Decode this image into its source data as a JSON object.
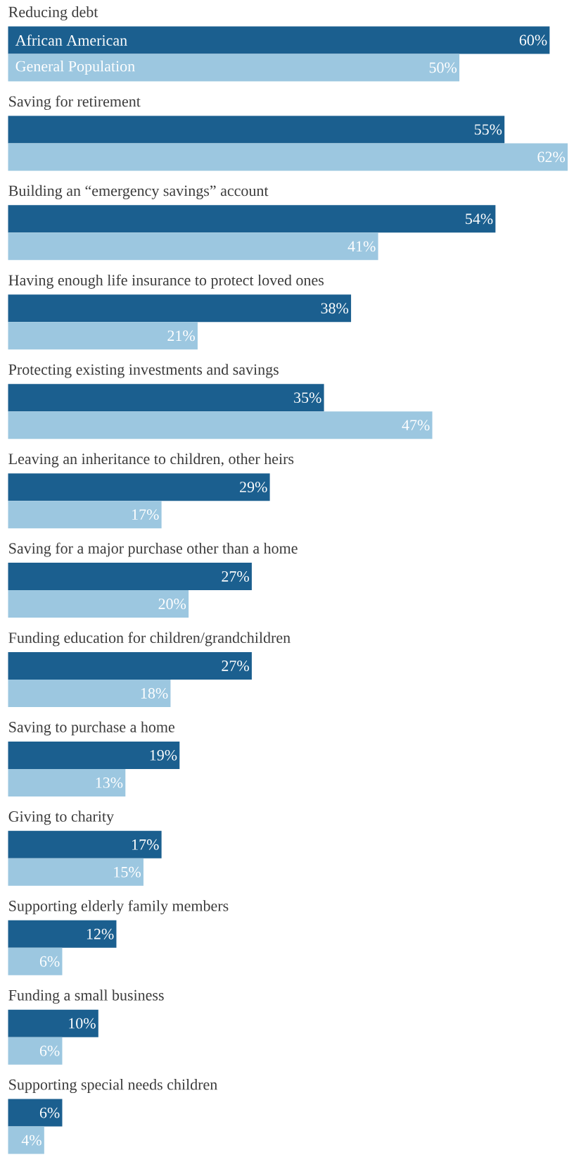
{
  "chart_data": {
    "type": "bar",
    "orientation": "horizontal",
    "categories": [
      "Reducing debt",
      "Saving for retirement",
      "Building an “emergency savings” account",
      "Having enough life insurance to protect loved ones",
      "Protecting existing investments and savings",
      "Leaving an inheritance to children, other heirs",
      "Saving for a major purchase other than a home",
      "Funding education for children/grandchildren",
      "Saving to purchase a home",
      "Giving to charity",
      "Supporting elderly family members",
      "Funding a small business",
      "Supporting special needs children"
    ],
    "series": [
      {
        "name": "African American",
        "color": "#1b5f8f",
        "values": [
          60,
          55,
          54,
          38,
          35,
          29,
          27,
          27,
          19,
          17,
          12,
          10,
          6
        ],
        "value_labels": [
          "60%",
          "55%",
          "54%",
          "38%",
          "35%",
          "29%",
          "27%",
          "27%",
          "19%",
          "17%",
          "12%",
          "10%",
          "6%"
        ]
      },
      {
        "name": "General Population",
        "color": "#9cc7e0",
        "values": [
          50,
          62,
          41,
          21,
          47,
          17,
          20,
          18,
          13,
          15,
          6,
          6,
          4
        ],
        "value_labels": [
          "50%",
          "62%",
          "41%",
          "21%",
          "47%",
          "17%",
          "20%",
          "18%",
          "13%",
          "15%",
          "6%",
          "6%",
          "4%"
        ]
      }
    ]
  }
}
